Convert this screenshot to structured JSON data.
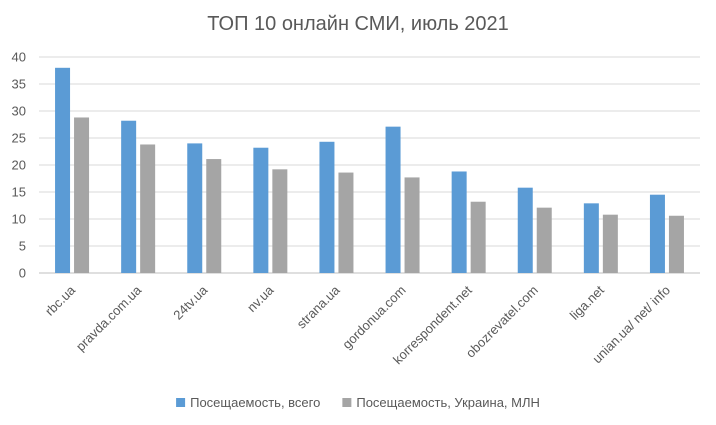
{
  "chart_data": {
    "type": "bar",
    "title": "ТОП 10 онлайн СМИ, июль 2021",
    "xlabel": "",
    "ylabel": "",
    "ylim": [
      0,
      40
    ],
    "yticks": [
      0,
      5,
      10,
      15,
      20,
      25,
      30,
      35,
      40
    ],
    "grid": true,
    "legend_position": "bottom",
    "categories": [
      "rbc.ua",
      "pravda.com.ua",
      "24tv.ua",
      "nv.ua",
      "strana.ua",
      "gordonua.com",
      "korrespondent.net",
      "obozrevatel.com",
      "liga.net",
      "unian.ua/ net/ info"
    ],
    "series": [
      {
        "name": "Посещаемость, всего",
        "color": "#5b9bd5",
        "values": [
          38.0,
          28.2,
          24.0,
          23.2,
          24.3,
          27.1,
          18.8,
          15.8,
          12.9,
          14.5
        ]
      },
      {
        "name": "Посещаемость, Украина, МЛН",
        "color": "#a5a5a5",
        "values": [
          28.8,
          23.8,
          21.1,
          19.2,
          18.6,
          17.7,
          13.2,
          12.1,
          10.8,
          10.6
        ]
      }
    ]
  }
}
